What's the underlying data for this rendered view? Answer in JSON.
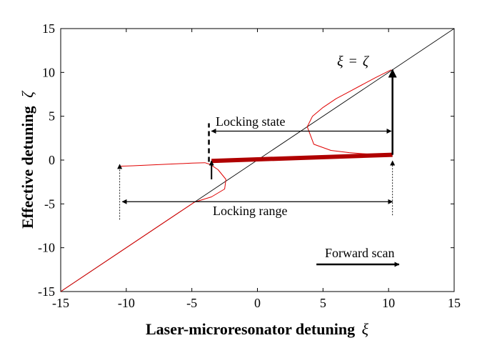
{
  "chart_data": {
    "type": "line",
    "xlabel": "Laser-microresonator detuning",
    "xlabel_symbol": "ξ",
    "ylabel": "Effective detuning",
    "ylabel_symbol": "ζ",
    "xlim": [
      -15,
      15
    ],
    "ylim": [
      -15,
      15
    ],
    "xticks": [
      -15,
      -10,
      -5,
      0,
      5,
      10,
      15
    ],
    "yticks": [
      -15,
      -10,
      -5,
      0,
      5,
      10,
      15
    ],
    "grid": false,
    "colors": {
      "diagonal": "#000000",
      "resonance_curve": "#e00000",
      "locked_branch": "#b00000",
      "arrows": "#000000"
    },
    "series": [
      {
        "x": [
          -15,
          15
        ],
        "y": [
          -15,
          15
        ]
      },
      {
        "x": [
          -10.5,
          -9.5,
          -8.0,
          -6.5,
          -5.0,
          -4.0,
          -3.6,
          -3.0,
          -2.4,
          -2.5,
          -3.5,
          -4.8,
          -6.0,
          -8.0,
          -10.0,
          -10.5
        ],
        "y": [
          -0.7,
          -0.65,
          -0.55,
          -0.45,
          -0.35,
          -0.3,
          -0.5,
          -1.1,
          -2.2,
          -3.3,
          -4.2,
          -4.8,
          -6.0,
          -8.0,
          -10.0,
          -10.5
        ]
      },
      {
        "x": [
          -15,
          -10.5
        ],
        "y": [
          -15,
          -10.5
        ]
      },
      {
        "x": [
          3.8,
          4.3,
          5.6,
          7.0,
          8.3,
          9.4,
          10.2
        ],
        "y": [
          3.8,
          1.8,
          1.1,
          0.85,
          0.7,
          0.6,
          0.55
        ]
      },
      {
        "x": [
          3.8,
          4.2,
          5.0,
          6.0,
          7.0,
          8.0,
          9.0,
          10.2
        ],
        "y": [
          3.8,
          5.0,
          6.0,
          7.0,
          7.8,
          8.6,
          9.4,
          10.3
        ]
      },
      {
        "x": [
          -3.5,
          10.3
        ],
        "y": [
          -0.1,
          0.6
        ]
      }
    ],
    "annotations": {
      "equality_lhs": "ξ",
      "equality_eq": "=",
      "equality_rhs": "ζ",
      "locking_state": "Locking state",
      "locking_range": "Locking range",
      "forward_scan": "Forward scan"
    }
  }
}
